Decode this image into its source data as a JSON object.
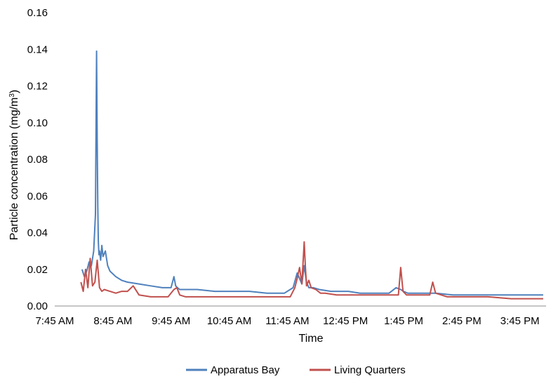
{
  "chart_data": {
    "type": "line",
    "title": "",
    "xlabel": "Time",
    "ylabel_main": "Particle concentration (mg/m",
    "ylabel_sup": "3",
    "ylabel_close": ")",
    "ylim": [
      0,
      0.16
    ],
    "yticks": [
      "0.00",
      "0.02",
      "0.04",
      "0.06",
      "0.08",
      "0.10",
      "0.12",
      "0.14",
      "0.16"
    ],
    "ytick_values": [
      0,
      0.02,
      0.04,
      0.06,
      0.08,
      0.1,
      0.12,
      0.14,
      0.16
    ],
    "xlim_hours": [
      7.75,
      16.2
    ],
    "xticks": [
      "7:45 AM",
      "8:45 AM",
      "9:45 AM",
      "10:45 AM",
      "11:45 AM",
      "12:45 PM",
      "1:45 PM",
      "2:45 PM",
      "3:45 PM"
    ],
    "xtick_hours": [
      7.75,
      8.75,
      9.75,
      10.75,
      11.75,
      12.75,
      13.75,
      14.75,
      15.75
    ],
    "grid": false,
    "legend_position": "bottom",
    "series": [
      {
        "name": "Apparatus Bay",
        "color": "#4F81BD",
        "x_hours": [
          8.22,
          8.26,
          8.3,
          8.34,
          8.38,
          8.42,
          8.45,
          8.47,
          8.48,
          8.49,
          8.5,
          8.51,
          8.52,
          8.54,
          8.56,
          8.58,
          8.62,
          8.66,
          8.7,
          8.8,
          8.9,
          9.0,
          9.2,
          9.4,
          9.6,
          9.75,
          9.8,
          9.83,
          9.86,
          9.9,
          10.2,
          10.5,
          10.8,
          11.1,
          11.4,
          11.7,
          11.85,
          11.92,
          11.96,
          12.0,
          12.04,
          12.08,
          12.12,
          12.2,
          12.3,
          12.5,
          12.8,
          13.0,
          13.3,
          13.5,
          13.62,
          13.7,
          13.75,
          13.82,
          14.0,
          14.3,
          14.6,
          15.0,
          15.5,
          16.0,
          16.15
        ],
        "values": [
          0.02,
          0.016,
          0.019,
          0.024,
          0.022,
          0.03,
          0.05,
          0.139,
          0.09,
          0.055,
          0.035,
          0.028,
          0.03,
          0.025,
          0.033,
          0.027,
          0.03,
          0.022,
          0.019,
          0.016,
          0.014,
          0.013,
          0.012,
          0.011,
          0.01,
          0.01,
          0.016,
          0.011,
          0.01,
          0.009,
          0.009,
          0.008,
          0.008,
          0.008,
          0.007,
          0.007,
          0.01,
          0.018,
          0.015,
          0.012,
          0.022,
          0.013,
          0.01,
          0.01,
          0.009,
          0.008,
          0.008,
          0.007,
          0.007,
          0.007,
          0.01,
          0.009,
          0.008,
          0.007,
          0.007,
          0.007,
          0.006,
          0.006,
          0.006,
          0.006,
          0.006
        ]
      },
      {
        "name": "Living Quarters",
        "color": "#C0504D",
        "x_hours": [
          8.2,
          8.24,
          8.28,
          8.32,
          8.36,
          8.4,
          8.44,
          8.48,
          8.52,
          8.56,
          8.6,
          8.7,
          8.8,
          8.9,
          9.0,
          9.1,
          9.2,
          9.4,
          9.7,
          9.8,
          9.85,
          9.9,
          10.0,
          10.3,
          10.6,
          10.9,
          11.2,
          11.5,
          11.8,
          11.88,
          11.92,
          11.96,
          12.0,
          12.04,
          12.06,
          12.08,
          12.12,
          12.16,
          12.24,
          12.32,
          12.4,
          12.6,
          12.9,
          13.2,
          13.5,
          13.66,
          13.7,
          13.74,
          13.8,
          14.0,
          14.2,
          14.25,
          14.3,
          14.5,
          14.8,
          15.2,
          15.6,
          16.0,
          16.15
        ],
        "values": [
          0.013,
          0.008,
          0.02,
          0.01,
          0.026,
          0.011,
          0.013,
          0.025,
          0.01,
          0.008,
          0.009,
          0.008,
          0.007,
          0.008,
          0.008,
          0.011,
          0.006,
          0.005,
          0.005,
          0.009,
          0.01,
          0.006,
          0.005,
          0.005,
          0.005,
          0.005,
          0.005,
          0.005,
          0.005,
          0.01,
          0.015,
          0.021,
          0.012,
          0.035,
          0.022,
          0.011,
          0.014,
          0.01,
          0.009,
          0.007,
          0.007,
          0.006,
          0.006,
          0.006,
          0.006,
          0.006,
          0.021,
          0.008,
          0.006,
          0.006,
          0.006,
          0.013,
          0.007,
          0.005,
          0.005,
          0.005,
          0.004,
          0.004,
          0.004
        ]
      }
    ]
  }
}
